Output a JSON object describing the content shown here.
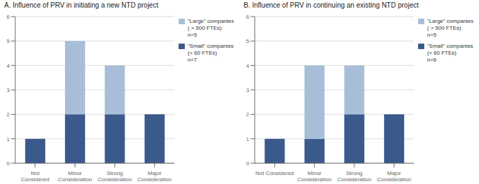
{
  "chart_data": [
    {
      "type": "bar",
      "title": "A. Influence of PRV in initiating a new NTD project",
      "categories": [
        "Not\nConsidered",
        "Minor\nConsideration",
        "Strong\nConsideration",
        "Major\nConsideration"
      ],
      "series": [
        {
          "name": "\"Small\" companies\n(< 60 FTEs)\nn=7",
          "color": "#3a5a8c",
          "values": [
            1,
            2,
            2,
            2
          ]
        },
        {
          "name": "\"Large\" companies\n( > 500 FTEs)\nn=5",
          "color": "#a8bdd8",
          "values": [
            0,
            3,
            2,
            0
          ]
        }
      ],
      "ylim": [
        0,
        6
      ],
      "yticks": [
        0,
        1,
        2,
        3,
        4,
        5,
        6
      ],
      "stacked": true,
      "grid": true,
      "legend": "right"
    },
    {
      "type": "bar",
      "title": "B. Influence of PRV in continuing an existing NTD project",
      "categories": [
        "Not Considered",
        "Minor\nConsideration",
        "Strong\nConsideration",
        "Major\nConsideration"
      ],
      "series": [
        {
          "name": "\"Small\" companies\n(< 60 FTEs)\nn=6",
          "color": "#3a5a8c",
          "values": [
            1,
            1,
            2,
            2
          ]
        },
        {
          "name": "\"Large\" companies\n( > 500 FTEs)\nn=5",
          "color": "#a8bdd8",
          "values": [
            0,
            3,
            2,
            0
          ]
        }
      ],
      "ylim": [
        0,
        6
      ],
      "yticks": [
        0,
        1,
        2,
        3,
        4,
        5,
        6
      ],
      "stacked": true,
      "grid": true,
      "legend": "right"
    }
  ]
}
